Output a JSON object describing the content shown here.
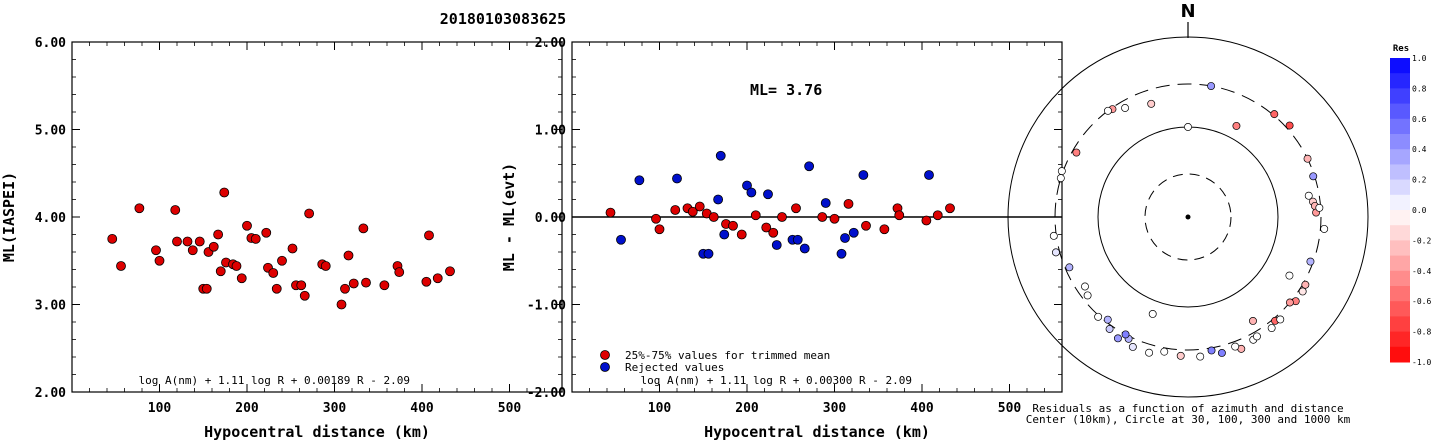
{
  "event_title": "20180103083625",
  "chart_data": [
    {
      "type": "scatter",
      "ylabel": "ML(IASPEI)",
      "xlabel": "Hypocentral distance (km)",
      "xlim": [
        0,
        560
      ],
      "ylim": [
        2.0,
        6.0
      ],
      "xticks": [
        "100",
        "200",
        "300",
        "400",
        "500"
      ],
      "yticks": [
        "2.00",
        "3.00",
        "4.00",
        "5.00",
        "6.00"
      ],
      "formula": "log A(nm) + 1.11 log R + 0.00189 R - 2.09",
      "marker_color": "#dd0000",
      "points": [
        [
          46,
          3.75
        ],
        [
          56,
          3.44
        ],
        [
          77,
          4.1
        ],
        [
          96,
          3.62
        ],
        [
          100,
          3.5
        ],
        [
          118,
          4.08
        ],
        [
          120,
          3.72
        ],
        [
          132,
          3.72
        ],
        [
          138,
          3.62
        ],
        [
          146,
          3.72
        ],
        [
          150,
          3.18
        ],
        [
          154,
          3.18
        ],
        [
          156,
          3.6
        ],
        [
          162,
          3.66
        ],
        [
          167,
          3.8
        ],
        [
          170,
          3.38
        ],
        [
          174,
          4.28
        ],
        [
          176,
          3.48
        ],
        [
          184,
          3.46
        ],
        [
          188,
          3.44
        ],
        [
          194,
          3.3
        ],
        [
          200,
          3.9
        ],
        [
          205,
          3.76
        ],
        [
          210,
          3.75
        ],
        [
          222,
          3.82
        ],
        [
          224,
          3.42
        ],
        [
          230,
          3.36
        ],
        [
          234,
          3.18
        ],
        [
          240,
          3.5
        ],
        [
          252,
          3.64
        ],
        [
          256,
          3.22
        ],
        [
          262,
          3.22
        ],
        [
          266,
          3.1
        ],
        [
          271,
          4.04
        ],
        [
          286,
          3.46
        ],
        [
          290,
          3.44
        ],
        [
          308,
          3.0
        ],
        [
          312,
          3.18
        ],
        [
          316,
          3.56
        ],
        [
          322,
          3.24
        ],
        [
          333,
          3.87
        ],
        [
          336,
          3.25
        ],
        [
          357,
          3.22
        ],
        [
          372,
          3.44
        ],
        [
          374,
          3.37
        ],
        [
          405,
          3.26
        ],
        [
          408,
          3.79
        ],
        [
          418,
          3.3
        ],
        [
          432,
          3.38
        ]
      ]
    },
    {
      "type": "scatter",
      "ylabel": "ML - ML(evt)",
      "xlabel": "Hypocentral distance (km)",
      "xlim": [
        0,
        560
      ],
      "ylim": [
        -2.0,
        2.0
      ],
      "xticks": [
        "100",
        "200",
        "300",
        "400",
        "500"
      ],
      "yticks": [
        "-2.00",
        "-1.00",
        "0.00",
        "1.00",
        "2.00"
      ],
      "ml_label": "ML= 3.76",
      "formula": "log A(nm) + 1.11 log R + 0.00300 R - 2.09",
      "legend": [
        {
          "label": "25%-75% values for trimmed mean",
          "color": "#dd0000"
        },
        {
          "label": "Rejected values",
          "color": "#0010cc"
        }
      ],
      "series": [
        {
          "name": "25%-75% values for trimmed mean",
          "color": "#dd0000",
          "points": [
            [
              44,
              0.05
            ],
            [
              96,
              -0.02
            ],
            [
              100,
              -0.14
            ],
            [
              118,
              0.08
            ],
            [
              132,
              0.1
            ],
            [
              138,
              0.06
            ],
            [
              146,
              0.12
            ],
            [
              154,
              0.04
            ],
            [
              162,
              0.0
            ],
            [
              176,
              -0.08
            ],
            [
              184,
              -0.1
            ],
            [
              194,
              -0.2
            ],
            [
              210,
              0.02
            ],
            [
              222,
              -0.12
            ],
            [
              230,
              -0.18
            ],
            [
              240,
              0.0
            ],
            [
              256,
              0.1
            ],
            [
              286,
              0.0
            ],
            [
              300,
              -0.02
            ],
            [
              316,
              0.15
            ],
            [
              336,
              -0.1
            ],
            [
              357,
              -0.14
            ],
            [
              372,
              0.1
            ],
            [
              374,
              0.02
            ],
            [
              405,
              -0.04
            ],
            [
              418,
              0.02
            ],
            [
              432,
              0.1
            ]
          ]
        },
        {
          "name": "Rejected values",
          "color": "#0010cc",
          "points": [
            [
              56,
              -0.26
            ],
            [
              77,
              0.42
            ],
            [
              120,
              0.44
            ],
            [
              150,
              -0.42
            ],
            [
              156,
              -0.42
            ],
            [
              167,
              0.2
            ],
            [
              170,
              0.7
            ],
            [
              174,
              -0.2
            ],
            [
              200,
              0.36
            ],
            [
              205,
              0.28
            ],
            [
              224,
              0.26
            ],
            [
              234,
              -0.32
            ],
            [
              252,
              -0.26
            ],
            [
              258,
              -0.26
            ],
            [
              266,
              -0.36
            ],
            [
              271,
              0.58
            ],
            [
              290,
              0.16
            ],
            [
              308,
              -0.42
            ],
            [
              312,
              -0.24
            ],
            [
              322,
              -0.18
            ],
            [
              333,
              0.48
            ],
            [
              408,
              0.48
            ]
          ]
        }
      ]
    },
    {
      "type": "polar-scatter",
      "north_label": "N",
      "caption_line1": "Residuals as a function of azimuth and distance",
      "caption_line2": "Center (10km), Circle at 30, 100, 300 and 1000 km",
      "rings_km": [
        30,
        100,
        300,
        1000
      ],
      "colorbar_title": "Res",
      "colorbar_ticks": [
        "1.0",
        "0.8",
        "0.6",
        "0.4",
        "0.2",
        "0.0",
        "-0.2",
        "-0.4",
        "-0.6",
        "-0.8",
        "-1.0"
      ],
      "colorbar_range": [
        -1.0,
        1.0
      ],
      "colors": {
        "positive": "#0010ff",
        "negative": "#ff0000",
        "zero": "#ffffff"
      },
      "points": [
        {
          "az": 330,
          "dist": 250,
          "res": 0.0
        },
        {
          "az": 325,
          "dist": 290,
          "res": -0.4
        },
        {
          "az": 323,
          "dist": 300,
          "res": 0.0
        },
        {
          "az": 342,
          "dist": 210,
          "res": -0.2
        },
        {
          "az": 10,
          "dist": 300,
          "res": 0.4
        },
        {
          "az": 0,
          "dist": 100,
          "res": 0.0
        },
        {
          "az": 28,
          "dist": 140,
          "res": -0.5
        },
        {
          "az": 40,
          "dist": 310,
          "res": -0.6
        },
        {
          "az": 48,
          "dist": 330,
          "res": -0.7
        },
        {
          "az": 300,
          "dist": 270,
          "res": -0.5
        },
        {
          "az": 290,
          "dist": 310,
          "res": 0.0
        },
        {
          "az": 287,
          "dist": 300,
          "res": 0.0
        },
        {
          "az": 72,
          "dist": 290,
          "res": 0.4
        },
        {
          "az": 64,
          "dist": 300,
          "res": -0.3
        },
        {
          "az": 80,
          "dist": 230,
          "res": 0.0
        },
        {
          "az": 83,
          "dist": 250,
          "res": -0.2
        },
        {
          "az": 85,
          "dist": 260,
          "res": -0.3
        },
        {
          "az": 88,
          "dist": 265,
          "res": -0.4
        },
        {
          "az": 86,
          "dist": 290,
          "res": 0.0
        },
        {
          "az": 95,
          "dist": 330,
          "res": 0.0
        },
        {
          "az": 255,
          "dist": 330,
          "res": 0.1
        },
        {
          "az": 262,
          "dist": 320,
          "res": 0.0
        },
        {
          "az": 247,
          "dist": 270,
          "res": 0.3
        },
        {
          "az": 110,
          "dist": 280,
          "res": 0.3
        },
        {
          "az": 120,
          "dist": 320,
          "res": -0.3
        },
        {
          "az": 123,
          "dist": 330,
          "res": -0.1
        },
        {
          "az": 128,
          "dist": 330,
          "res": -0.5
        },
        {
          "az": 130,
          "dist": 300,
          "res": -0.4
        },
        {
          "az": 140,
          "dist": 320,
          "res": -0.6
        },
        {
          "az": 143,
          "dist": 350,
          "res": 0.0
        },
        {
          "az": 200,
          "dist": 140,
          "res": 0.0
        },
        {
          "az": 222,
          "dist": 310,
          "res": 0.0
        },
        {
          "az": 215,
          "dist": 330,
          "res": 0.2
        },
        {
          "az": 206,
          "dist": 320,
          "res": 0.3
        },
        {
          "az": 210,
          "dist": 360,
          "res": 0.4
        },
        {
          "az": 203,
          "dist": 370,
          "res": 0.1
        },
        {
          "az": 196,
          "dist": 370,
          "res": 0.0
        },
        {
          "az": 190,
          "dist": 330,
          "res": 0.0
        },
        {
          "az": 183,
          "dist": 350,
          "res": -0.2
        },
        {
          "az": 175,
          "dist": 360,
          "res": 0.0
        },
        {
          "az": 170,
          "dist": 320,
          "res": 0.5
        },
        {
          "az": 166,
          "dist": 360,
          "res": 0.5
        },
        {
          "az": 148,
          "dist": 230,
          "res": -0.3
        },
        {
          "az": 158,
          "dist": 380,
          "res": -0.3
        },
        {
          "az": 160,
          "dist": 340,
          "res": 0.0
        },
        {
          "az": 152,
          "dist": 350,
          "res": 0.0
        },
        {
          "az": 150,
          "dist": 340,
          "res": 0.0
        },
        {
          "az": 138,
          "dist": 340,
          "res": 0.0
        },
        {
          "az": 120,
          "dist": 200,
          "res": 0.0
        },
        {
          "az": 232,
          "dist": 260,
          "res": 0.0
        },
        {
          "az": 236,
          "dist": 240,
          "res": 0.0
        },
        {
          "az": 208,
          "dist": 300,
          "res": 0.5
        },
        {
          "az": 218,
          "dist": 280,
          "res": 0.3
        }
      ]
    }
  ]
}
